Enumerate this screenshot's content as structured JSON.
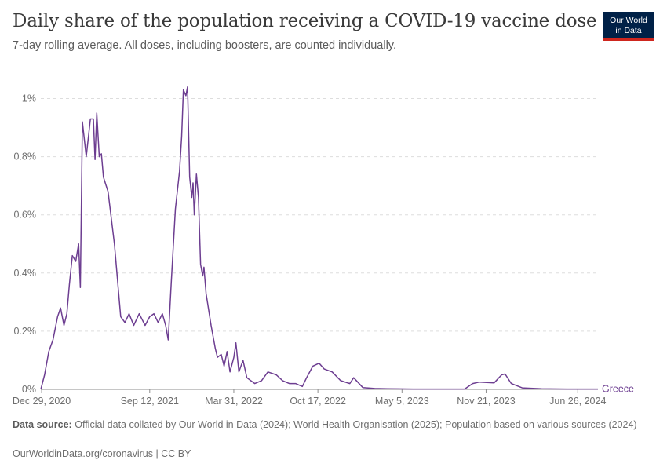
{
  "title": "Daily share of the population receiving a COVID-19 vaccine dose",
  "subtitle": "7-day rolling average. All doses, including boosters, are counted individually.",
  "logo": {
    "line1": "Our World",
    "line2": "in Data"
  },
  "colors": {
    "series": "#6d3e91",
    "grid": "#dddddd",
    "axis": "#8e8e8e",
    "logo_bg": "#002147",
    "logo_accent": "#ce261e"
  },
  "source_label": "Data source:",
  "source_text": "Official data collated by Our World in Data (2024); World Health Organisation (2025); Population based on various sources (2024)",
  "credit": "OurWorldinData.org/coronavirus | CC BY",
  "chart_data": {
    "type": "line",
    "title": "Daily share of the population receiving a COVID-19 vaccine dose",
    "xlabel": "",
    "ylabel": "",
    "ylim": [
      0,
      1.05
    ],
    "xlim": [
      "2020-12-27",
      "2024-08-13"
    ],
    "y_ticks": [
      0,
      0.2,
      0.4,
      0.6,
      0.8,
      1
    ],
    "y_tick_labels": [
      "0%",
      "0.2%",
      "0.4%",
      "0.6%",
      "0.8%",
      "1%"
    ],
    "x_ticks": [
      "2020-12-29",
      "2021-09-12",
      "2022-03-31",
      "2022-10-17",
      "2023-05-05",
      "2023-11-21",
      "2024-06-26"
    ],
    "x_tick_labels": [
      "Dec 29, 2020",
      "Sep 12, 2021",
      "Mar 31, 2022",
      "Oct 17, 2022",
      "May 5, 2023",
      "Nov 21, 2023",
      "Jun 26, 2024"
    ],
    "grid": "horizontal",
    "legend": "line-end label",
    "series": [
      {
        "name": "Greece",
        "points": [
          [
            "2020-12-27",
            0.0
          ],
          [
            "2021-01-05",
            0.05
          ],
          [
            "2021-01-15",
            0.13
          ],
          [
            "2021-01-25",
            0.17
          ],
          [
            "2021-02-05",
            0.25
          ],
          [
            "2021-02-12",
            0.28
          ],
          [
            "2021-02-20",
            0.22
          ],
          [
            "2021-02-27",
            0.26
          ],
          [
            "2021-03-05",
            0.36
          ],
          [
            "2021-03-12",
            0.46
          ],
          [
            "2021-03-20",
            0.44
          ],
          [
            "2021-03-27",
            0.5
          ],
          [
            "2021-03-31",
            0.35
          ],
          [
            "2021-04-05",
            0.92
          ],
          [
            "2021-04-14",
            0.8
          ],
          [
            "2021-04-24",
            0.93
          ],
          [
            "2021-05-01",
            0.93
          ],
          [
            "2021-05-05",
            0.79
          ],
          [
            "2021-05-09",
            0.95
          ],
          [
            "2021-05-15",
            0.8
          ],
          [
            "2021-05-20",
            0.81
          ],
          [
            "2021-05-25",
            0.73
          ],
          [
            "2021-06-05",
            0.68
          ],
          [
            "2021-06-20",
            0.5
          ],
          [
            "2021-07-05",
            0.25
          ],
          [
            "2021-07-15",
            0.23
          ],
          [
            "2021-07-25",
            0.26
          ],
          [
            "2021-08-05",
            0.22
          ],
          [
            "2021-08-18",
            0.26
          ],
          [
            "2021-09-01",
            0.22
          ],
          [
            "2021-09-12",
            0.25
          ],
          [
            "2021-09-22",
            0.26
          ],
          [
            "2021-10-02",
            0.23
          ],
          [
            "2021-10-12",
            0.26
          ],
          [
            "2021-10-20",
            0.22
          ],
          [
            "2021-10-26",
            0.17
          ],
          [
            "2021-11-02",
            0.36
          ],
          [
            "2021-11-12",
            0.62
          ],
          [
            "2021-11-22",
            0.75
          ],
          [
            "2021-11-27",
            0.87
          ],
          [
            "2021-12-01",
            1.03
          ],
          [
            "2021-12-07",
            1.01
          ],
          [
            "2021-12-11",
            1.04
          ],
          [
            "2021-12-16",
            0.73
          ],
          [
            "2021-12-21",
            0.66
          ],
          [
            "2021-12-24",
            0.71
          ],
          [
            "2021-12-27",
            0.6
          ],
          [
            "2022-01-01",
            0.74
          ],
          [
            "2022-01-06",
            0.66
          ],
          [
            "2022-01-11",
            0.43
          ],
          [
            "2022-01-16",
            0.39
          ],
          [
            "2022-01-19",
            0.42
          ],
          [
            "2022-01-24",
            0.33
          ],
          [
            "2022-02-05",
            0.22
          ],
          [
            "2022-02-15",
            0.14
          ],
          [
            "2022-02-20",
            0.11
          ],
          [
            "2022-03-01",
            0.12
          ],
          [
            "2022-03-08",
            0.08
          ],
          [
            "2022-03-15",
            0.13
          ],
          [
            "2022-03-22",
            0.06
          ],
          [
            "2022-03-31",
            0.11
          ],
          [
            "2022-04-05",
            0.16
          ],
          [
            "2022-04-12",
            0.06
          ],
          [
            "2022-04-22",
            0.1
          ],
          [
            "2022-05-01",
            0.04
          ],
          [
            "2022-05-20",
            0.02
          ],
          [
            "2022-06-05",
            0.03
          ],
          [
            "2022-06-20",
            0.06
          ],
          [
            "2022-07-10",
            0.05
          ],
          [
            "2022-07-25",
            0.03
          ],
          [
            "2022-08-10",
            0.02
          ],
          [
            "2022-08-25",
            0.02
          ],
          [
            "2022-09-10",
            0.01
          ],
          [
            "2022-09-20",
            0.04
          ],
          [
            "2022-10-05",
            0.08
          ],
          [
            "2022-10-20",
            0.09
          ],
          [
            "2022-11-01",
            0.07
          ],
          [
            "2022-11-20",
            0.06
          ],
          [
            "2022-12-10",
            0.03
          ],
          [
            "2023-01-01",
            0.02
          ],
          [
            "2023-01-10",
            0.04
          ],
          [
            "2023-02-01",
            0.006
          ],
          [
            "2023-03-01",
            0.003
          ],
          [
            "2023-04-01",
            0.002
          ],
          [
            "2023-06-01",
            0.001
          ],
          [
            "2023-09-01",
            0.001
          ],
          [
            "2023-10-01",
            0.001
          ],
          [
            "2023-10-20",
            0.02
          ],
          [
            "2023-11-05",
            0.025
          ],
          [
            "2023-12-10",
            0.022
          ],
          [
            "2023-12-28",
            0.05
          ],
          [
            "2024-01-05",
            0.053
          ],
          [
            "2024-01-20",
            0.02
          ],
          [
            "2024-02-15",
            0.005
          ],
          [
            "2024-04-01",
            0.002
          ],
          [
            "2024-06-01",
            0.001
          ],
          [
            "2024-08-13",
            0.001
          ]
        ]
      }
    ]
  }
}
